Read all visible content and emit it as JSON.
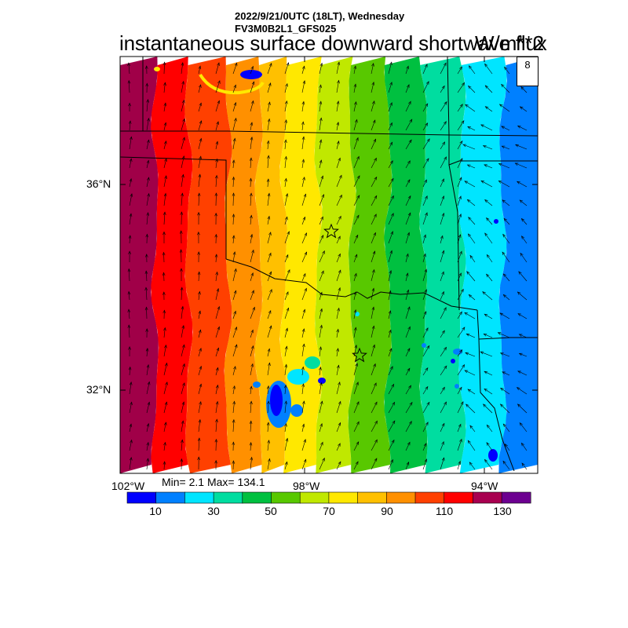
{
  "header": {
    "datetime": "2022/9/21/0UTC (18LT), Wednesday",
    "model": "FV3M0B2L1_GFS025"
  },
  "title": "instantaneous surface downward shortwave flux",
  "units": "W/m**2",
  "vector_reference": "8",
  "lat_labels": [
    "36°N",
    "32°N"
  ],
  "lon_labels": [
    "102°W",
    "98°W",
    "94°W"
  ],
  "stats": "Min= 2.1 Max= 134.1",
  "colorbar": {
    "colors": [
      "#0000ff",
      "#0080ff",
      "#00e5ff",
      "#00dda0",
      "#00c040",
      "#58c800",
      "#c0e800",
      "#ffe800",
      "#ffc000",
      "#ff9000",
      "#ff4000",
      "#ff0000",
      "#a80050",
      "#6c0090"
    ],
    "tick_labels": [
      "10",
      "30",
      "50",
      "70",
      "90",
      "110",
      "130"
    ]
  },
  "field": {
    "band_colors": [
      "#a00048",
      "#ff0000",
      "#ff4000",
      "#ff9000",
      "#ffc000",
      "#ffe800",
      "#c0e800",
      "#58c800",
      "#00c040",
      "#00dda0",
      "#00e5ff",
      "#0080ff"
    ]
  }
}
